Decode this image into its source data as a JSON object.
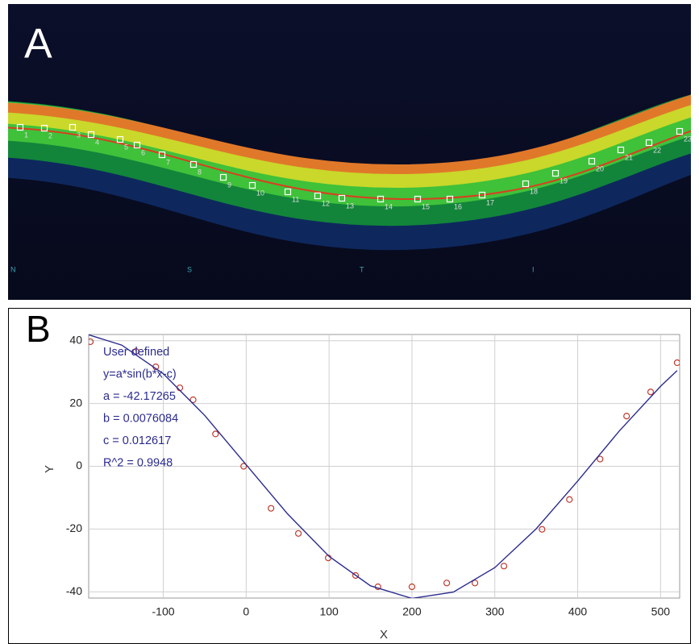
{
  "panel_a": {
    "label": "A",
    "markers": [
      "1",
      "2",
      "3",
      "4",
      "5",
      "6",
      "7",
      "8",
      "9",
      "10",
      "11",
      "12",
      "13",
      "14",
      "15",
      "16",
      "17",
      "18",
      "19",
      "20",
      "21",
      "22",
      "23"
    ],
    "regions": [
      "N",
      "S",
      "T",
      "I"
    ]
  },
  "chart_data": {
    "type": "scatter",
    "label": "B",
    "x_label": "X",
    "y_label": "Y",
    "annotations": [
      "User defined",
      "y=a*sin(b*x-c)",
      "a = -42.17265",
      "b = 0.0076084",
      "c = 0.012617",
      "R^2 = 0.9948"
    ],
    "xlim": [
      -190,
      523
    ],
    "ylim": [
      -42,
      42
    ],
    "xticks": [
      -100,
      0,
      100,
      200,
      300,
      400,
      500
    ],
    "yticks": [
      -40,
      -20,
      0,
      20,
      40
    ],
    "grid": true,
    "series": [
      {
        "style": "points",
        "color": "#c0392b",
        "x": [
          -188,
          -133,
          -109,
          -80,
          -64,
          -37,
          -3,
          30,
          63,
          99,
          132,
          159,
          200,
          242,
          276,
          311,
          357,
          390,
          427,
          459,
          488,
          520
        ],
        "values": [
          39.7,
          36.6,
          31.7,
          25.0,
          21.2,
          10.3,
          0,
          -13.4,
          -21.4,
          -29.2,
          -34.8,
          -38.4,
          -38.4,
          -37.2,
          -37.2,
          -31.8,
          -20.1,
          -10.6,
          2.3,
          16.0,
          23.7,
          33.0
        ]
      },
      {
        "style": "line",
        "color": "#2b2b8f",
        "x": [
          -190,
          -150,
          -100,
          -50,
          0,
          50,
          100,
          150,
          200,
          250,
          300,
          350,
          400,
          450,
          500,
          520
        ],
        "values": [
          41.9,
          38.6,
          29.5,
          16.2,
          0.5,
          -15.2,
          -28.7,
          -38.1,
          -42.1,
          -40.1,
          -32.3,
          -19.9,
          -4.7,
          11.2,
          25.5,
          30.5
        ]
      }
    ]
  }
}
